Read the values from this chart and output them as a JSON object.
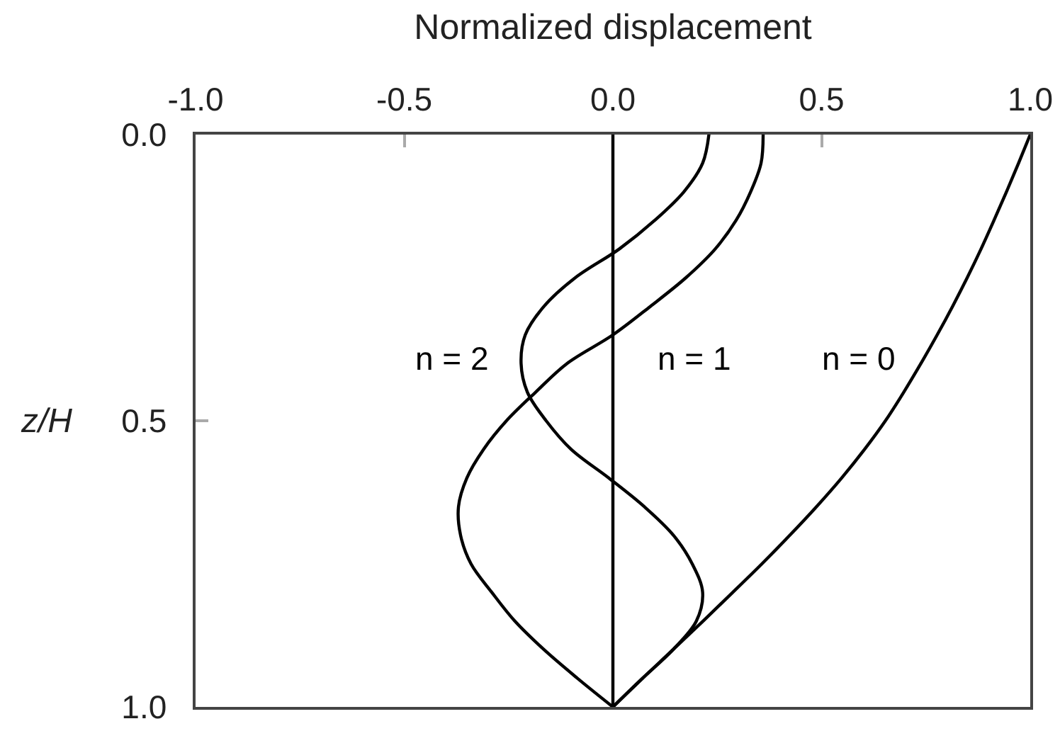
{
  "chart_data": {
    "type": "line",
    "xlabel": "Normalized displacement",
    "ylabel": "z/H",
    "xlim": [
      -1,
      1
    ],
    "xticks": [
      {
        "value": -1,
        "label": "-1.0"
      },
      {
        "value": -0.5,
        "label": "-0.5"
      },
      {
        "value": 0,
        "label": "0.0"
      },
      {
        "value": 0.5,
        "label": "0.5"
      },
      {
        "value": 1,
        "label": "1.0"
      }
    ],
    "ylim": [
      1,
      0
    ],
    "yticks": [
      {
        "value": 0,
        "label": "0.0"
      },
      {
        "value": 0.5,
        "label": "0.5"
      },
      {
        "value": 1,
        "label": "1.0"
      }
    ],
    "grid": false,
    "legend": false,
    "marker": "none",
    "line_style": "solid",
    "ref_lines": [
      {
        "axis": "x",
        "value": 0,
        "color": "#000000",
        "line_style": "solid"
      }
    ],
    "series": [
      {
        "name": "n = 0",
        "color": "#000000",
        "x": [
          1.0,
          0.972,
          0.943,
          0.913,
          0.882,
          0.849,
          0.814,
          0.777,
          0.738,
          0.697,
          0.653,
          0.603,
          0.548,
          0.488,
          0.424,
          0.357,
          0.287,
          0.216,
          0.144,
          0.071,
          0.0
        ],
        "values": [
          0,
          0.05,
          0.1,
          0.15,
          0.2,
          0.25,
          0.3,
          0.35,
          0.4,
          0.45,
          0.5,
          0.55,
          0.6,
          0.65,
          0.7,
          0.75,
          0.8,
          0.85,
          0.9,
          0.95,
          1.0
        ]
      },
      {
        "name": "n = 1",
        "color": "#000000",
        "x": [
          0.36,
          0.355,
          0.33,
          0.295,
          0.245,
          0.175,
          0.09,
          0.0,
          -0.11,
          -0.185,
          -0.255,
          -0.31,
          -0.35,
          -0.37,
          -0.365,
          -0.34,
          -0.29,
          -0.235,
          -0.165,
          -0.085,
          0.0
        ],
        "values": [
          0,
          0.05,
          0.1,
          0.15,
          0.2,
          0.25,
          0.3,
          0.35,
          0.4,
          0.45,
          0.5,
          0.55,
          0.6,
          0.65,
          0.7,
          0.75,
          0.8,
          0.85,
          0.9,
          0.95,
          1.0
        ]
      },
      {
        "name": "n = 2",
        "color": "#000000",
        "x": [
          0.23,
          0.215,
          0.17,
          0.1,
          0.015,
          -0.09,
          -0.165,
          -0.21,
          -0.22,
          -0.205,
          -0.16,
          -0.1,
          -0.01,
          0.075,
          0.145,
          0.19,
          0.215,
          0.2,
          0.144,
          0.071,
          0.0
        ],
        "values": [
          0,
          0.05,
          0.1,
          0.15,
          0.2,
          0.25,
          0.3,
          0.35,
          0.4,
          0.45,
          0.5,
          0.55,
          0.6,
          0.65,
          0.7,
          0.75,
          0.8,
          0.85,
          0.9,
          0.95,
          1.0
        ]
      }
    ]
  }
}
